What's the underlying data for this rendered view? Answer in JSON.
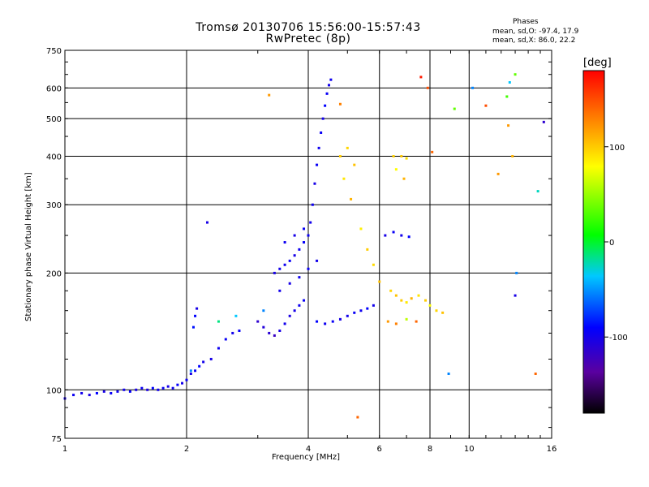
{
  "title_line1": "Tromsø 20130706 15:56:00-15:57:43",
  "title_line2": "RwPretec (8p)",
  "phases": {
    "heading": "Phases",
    "o_stats": "mean, sd,O: -97.4, 17.9",
    "x_stats": "mean, sd,X:  86.0, 22.2"
  },
  "colorbar": {
    "unit": "[deg]",
    "ticks": [
      "100",
      "0",
      "-100"
    ],
    "range": [
      -180,
      180
    ],
    "colors": [
      "#000000",
      "#5a00a0",
      "#0000ff",
      "#00ffff",
      "#00ff00",
      "#ffff00",
      "#ff8000",
      "#ff0000"
    ]
  },
  "chart_data": {
    "type": "scatter",
    "xlabel": "Frequency [MHz]",
    "ylabel": "Stationary phase Virtual Height [km]",
    "xscale": "log",
    "yscale": "log",
    "xlim": [
      1,
      16
    ],
    "ylim": [
      75,
      750
    ],
    "x_ticks": [
      1,
      2,
      4,
      6,
      8,
      10,
      16
    ],
    "y_ticks": [
      75,
      100,
      200,
      300,
      400,
      500,
      600,
      750
    ],
    "grid": true,
    "series": [
      {
        "color_mapping": "phase [deg]",
        "points": [
          [
            1.0,
            95,
            -110
          ],
          [
            1.05,
            97,
            -105
          ],
          [
            1.1,
            98,
            -108
          ],
          [
            1.15,
            97,
            -112
          ],
          [
            1.2,
            98,
            -100
          ],
          [
            1.25,
            99,
            -110
          ],
          [
            1.3,
            98,
            -104
          ],
          [
            1.35,
            99,
            -106
          ],
          [
            1.4,
            100,
            -108
          ],
          [
            1.45,
            99,
            -102
          ],
          [
            1.5,
            100,
            -110
          ],
          [
            1.55,
            101,
            -105
          ],
          [
            1.6,
            100,
            -112
          ],
          [
            1.65,
            101,
            -100
          ],
          [
            1.7,
            100,
            -108
          ],
          [
            1.75,
            101,
            -104
          ],
          [
            1.8,
            102,
            -110
          ],
          [
            1.85,
            101,
            -106
          ],
          [
            1.9,
            103,
            -102
          ],
          [
            1.95,
            104,
            -108
          ],
          [
            2.0,
            106,
            -105
          ],
          [
            2.05,
            110,
            -110
          ],
          [
            2.1,
            112,
            -104
          ],
          [
            2.15,
            115,
            -100
          ],
          [
            2.2,
            118,
            -108
          ],
          [
            2.3,
            120,
            -110
          ],
          [
            2.4,
            128,
            -106
          ],
          [
            2.5,
            135,
            -104
          ],
          [
            2.6,
            140,
            -108
          ],
          [
            2.7,
            142,
            -102
          ],
          [
            2.08,
            145,
            -95
          ],
          [
            2.1,
            155,
            -100
          ],
          [
            2.12,
            162,
            -110
          ],
          [
            2.05,
            112,
            -60
          ],
          [
            2.25,
            270,
            -110
          ],
          [
            3.0,
            150,
            -120
          ],
          [
            3.1,
            145,
            -115
          ],
          [
            3.2,
            140,
            -118
          ],
          [
            3.3,
            138,
            -125
          ],
          [
            3.4,
            142,
            -110
          ],
          [
            3.5,
            148,
            -108
          ],
          [
            3.6,
            155,
            -112
          ],
          [
            3.7,
            160,
            -110
          ],
          [
            3.8,
            165,
            -106
          ],
          [
            3.9,
            170,
            -104
          ],
          [
            3.3,
            200,
            -110
          ],
          [
            3.4,
            205,
            -108
          ],
          [
            3.5,
            210,
            -106
          ],
          [
            3.6,
            215,
            -104
          ],
          [
            3.7,
            222,
            -110
          ],
          [
            3.8,
            230,
            -106
          ],
          [
            3.9,
            240,
            -102
          ],
          [
            4.0,
            250,
            -104
          ],
          [
            4.05,
            270,
            -108
          ],
          [
            4.1,
            300,
            -106
          ],
          [
            4.15,
            340,
            -110
          ],
          [
            4.2,
            380,
            -104
          ],
          [
            4.25,
            420,
            -106
          ],
          [
            4.3,
            460,
            -104
          ],
          [
            4.35,
            500,
            -108
          ],
          [
            4.4,
            540,
            -100
          ],
          [
            4.45,
            580,
            -104
          ],
          [
            4.5,
            610,
            -108
          ],
          [
            4.55,
            630,
            -106
          ],
          [
            3.4,
            180,
            -108
          ],
          [
            3.6,
            188,
            -110
          ],
          [
            3.8,
            195,
            -106
          ],
          [
            4.0,
            205,
            -104
          ],
          [
            4.2,
            215,
            -108
          ],
          [
            3.5,
            240,
            -106
          ],
          [
            3.7,
            250,
            -110
          ],
          [
            3.9,
            260,
            -104
          ],
          [
            4.2,
            150,
            -100
          ],
          [
            4.4,
            148,
            -106
          ],
          [
            4.6,
            150,
            -104
          ],
          [
            4.8,
            152,
            -110
          ],
          [
            5.0,
            155,
            -108
          ],
          [
            5.2,
            158,
            -104
          ],
          [
            5.4,
            160,
            -106
          ],
          [
            5.6,
            162,
            -100
          ],
          [
            5.8,
            165,
            -108
          ],
          [
            4.8,
            400,
            100
          ],
          [
            5.0,
            420,
            96
          ],
          [
            5.2,
            380,
            104
          ],
          [
            4.9,
            350,
            90
          ],
          [
            5.1,
            310,
            110
          ],
          [
            5.4,
            260,
            86
          ],
          [
            5.6,
            230,
            100
          ],
          [
            5.8,
            210,
            94
          ],
          [
            6.0,
            190,
            104
          ],
          [
            6.5,
            400,
            98
          ],
          [
            6.8,
            400,
            102
          ],
          [
            7.0,
            395,
            92
          ],
          [
            6.6,
            370,
            80
          ],
          [
            6.9,
            350,
            110
          ],
          [
            6.4,
            180,
            96
          ],
          [
            6.6,
            175,
            104
          ],
          [
            6.8,
            170,
            100
          ],
          [
            7.0,
            168,
            88
          ],
          [
            7.2,
            172,
            110
          ],
          [
            6.3,
            150,
            120
          ],
          [
            6.6,
            148,
            130
          ],
          [
            7.0,
            152,
            60
          ],
          [
            7.4,
            150,
            140
          ],
          [
            6.2,
            250,
            -110
          ],
          [
            6.5,
            255,
            -104
          ],
          [
            6.8,
            250,
            -108
          ],
          [
            7.1,
            248,
            -100
          ],
          [
            7.5,
            175,
            90
          ],
          [
            7.8,
            170,
            100
          ],
          [
            8.0,
            165,
            80
          ],
          [
            8.3,
            160,
            96
          ],
          [
            8.6,
            158,
            104
          ],
          [
            7.6,
            640,
            170
          ],
          [
            7.9,
            600,
            150
          ],
          [
            8.1,
            410,
            140
          ],
          [
            5.3,
            85,
            140
          ],
          [
            4.8,
            545,
            130
          ],
          [
            11.0,
            540,
            150
          ],
          [
            12.5,
            480,
            120
          ],
          [
            12.8,
            400,
            110
          ],
          [
            13.0,
            650,
            30
          ],
          [
            12.6,
            620,
            -40
          ],
          [
            13.1,
            200,
            -60
          ],
          [
            13.0,
            175,
            -110
          ],
          [
            15.3,
            490,
            -120
          ],
          [
            14.6,
            110,
            140
          ],
          [
            14.8,
            325,
            -30
          ],
          [
            9.2,
            530,
            30
          ],
          [
            11.8,
            360,
            120
          ],
          [
            10.2,
            600,
            -60
          ],
          [
            12.4,
            570,
            20
          ],
          [
            8.9,
            110,
            -60
          ],
          [
            3.2,
            575,
            120
          ],
          [
            2.65,
            155,
            -40
          ],
          [
            3.1,
            160,
            -60
          ],
          [
            2.4,
            150,
            -20
          ]
        ]
      }
    ]
  }
}
